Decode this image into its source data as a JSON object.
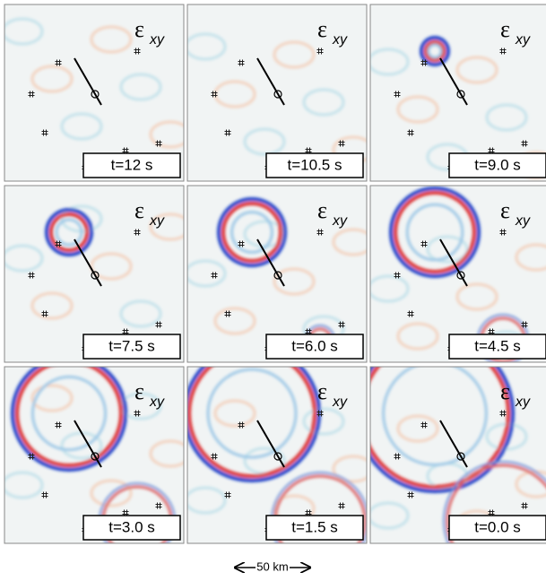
{
  "component": {
    "symbol": "ε",
    "subscript": "xy"
  },
  "panels": [
    {
      "time_label": "t=12 s"
    },
    {
      "time_label": "t=10.5 s"
    },
    {
      "time_label": "t=9.0 s"
    },
    {
      "time_label": "t=7.5 s"
    },
    {
      "time_label": "t=6.0 s"
    },
    {
      "time_label": "t=4.5 s"
    },
    {
      "time_label": "t=3.0 s"
    },
    {
      "time_label": "t=1.5 s"
    },
    {
      "time_label": "t=0.0 s"
    }
  ],
  "scale_bar": "50 km"
}
